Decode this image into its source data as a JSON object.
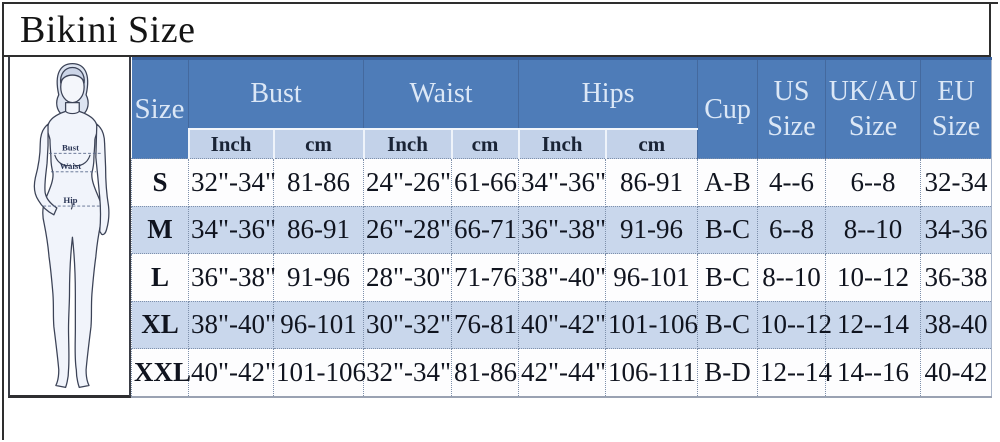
{
  "title": "Bikini Size",
  "figure": {
    "labels": {
      "bust": "Bust",
      "waist": "Waist",
      "hip": "Hip"
    }
  },
  "table": {
    "headers": {
      "size": "Size",
      "bust": "Bust",
      "waist": "Waist",
      "hips": "Hips",
      "cup": "Cup",
      "us": "US Size",
      "ukau": "UK/AU Size",
      "eu": "EU Size"
    },
    "subheaders": [
      "Inch",
      "cm",
      "Inch",
      "cm",
      "Inch",
      "cm"
    ],
    "rows": [
      [
        "S",
        "32\"-34\"",
        "81-86",
        "24\"-26\"",
        "61-66",
        "34\"-36\"",
        "86-91",
        "A-B",
        "4--6",
        "6--8",
        "32-34"
      ],
      [
        "M",
        "34\"-36\"",
        "86-91",
        "26\"-28\"",
        "66-71",
        "36\"-38\"",
        "91-96",
        "B-C",
        "6--8",
        "8--10",
        "34-36"
      ],
      [
        "L",
        "36\"-38\"",
        "91-96",
        "28\"-30\"",
        "71-76",
        "38\"-40\"",
        "96-101",
        "B-C",
        "8--10",
        "10--12",
        "36-38"
      ],
      [
        "XL",
        "38\"-40\"",
        "96-101",
        "30\"-32\"",
        "76-81",
        "40\"-42\"",
        "101-106",
        "B-C",
        "10--12",
        "12--14",
        "38-40"
      ],
      [
        "XXL",
        "40\"-42\"",
        "101-106",
        "32\"-34\"",
        "81-86",
        "42\"-44\"",
        "106-111",
        "B-D",
        "12--14",
        "14--16",
        "40-42"
      ]
    ]
  },
  "colors": {
    "header_bg": "#4e7cb8",
    "header_text": "#dbe7f6",
    "subheader_bg": "#c3d2e9",
    "subheader_text": "#1a2436",
    "row_alt_bg": "#c9d7ec",
    "row_bg": "#fdfdfe",
    "data_text": "#10141f",
    "dotted_border": "#7e90ab"
  }
}
